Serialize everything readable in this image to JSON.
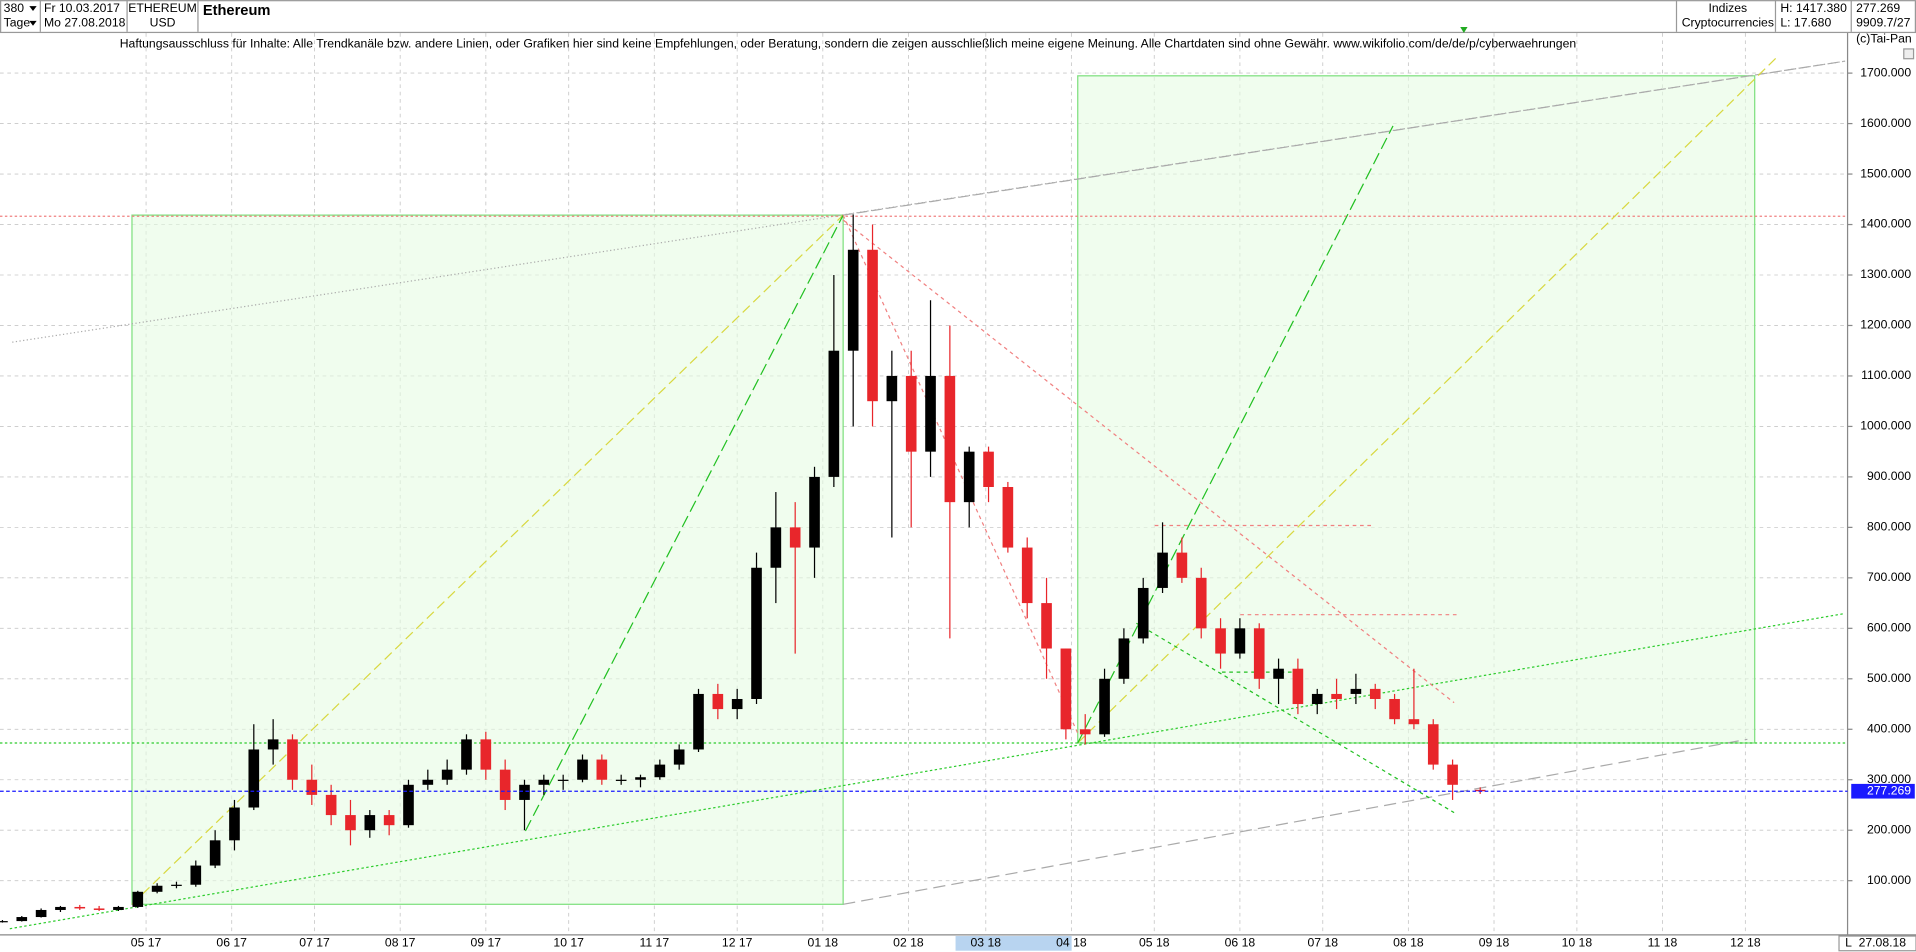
{
  "header": {
    "count": "380",
    "start": "Fr 10.03.2017",
    "period": "Tage",
    "end": "Mo 27.08.2018",
    "symbol": "ETHEREUM",
    "currency": "USD",
    "name": "Ethereum",
    "group": "Indizes",
    "subgroup": "Cryptocurrencies",
    "high": "H: 1417.380",
    "low": "L: 17.680",
    "last": "277.269",
    "extra": "9909.7/27",
    "copyright": "(c)Tai-Pan",
    "end_short": "27.08.18",
    "scale_mode": "L"
  },
  "chart_data": {
    "type": "candlestick",
    "title": "Haftungsausschluss für Inhalte: Alle Trendkanäle bzw. andere Linien, oder Grafiken hier sind keine Empfehlungen, oder Beratung, sondern die zeigen ausschließlich meine eigene Meinung. Alle Chartdaten sind ohne Gewähr.  www.wikifolio.com/de/de/p/cyberwaehrungen",
    "up_color": "#000000",
    "down_color": "#e8262b",
    "grid": true,
    "last_price": 277.269,
    "last_color": "#1a1aff",
    "xlim": [
      0,
      668
    ],
    "ylim": [
      0,
      1760
    ],
    "xticks": [
      {
        "value": 52,
        "label": "05 17"
      },
      {
        "value": 83,
        "label": "06 17"
      },
      {
        "value": 113,
        "label": "07 17"
      },
      {
        "value": 144,
        "label": "08 17"
      },
      {
        "value": 175,
        "label": "09 17"
      },
      {
        "value": 205,
        "label": "10 17"
      },
      {
        "value": 236,
        "label": "11 17"
      },
      {
        "value": 266,
        "label": "12 17"
      },
      {
        "value": 297,
        "label": "01 18"
      },
      {
        "value": 328,
        "label": "02 18"
      },
      {
        "value": 356,
        "label": "03 18"
      },
      {
        "value": 387,
        "label": "04 18"
      },
      {
        "value": 417,
        "label": "05 18"
      },
      {
        "value": 448,
        "label": "06 18"
      },
      {
        "value": 478,
        "label": "07 18"
      },
      {
        "value": 509,
        "label": "08 18"
      },
      {
        "value": 540,
        "label": "09 18"
      },
      {
        "value": 570,
        "label": "10 18"
      },
      {
        "value": 601,
        "label": "11 18"
      },
      {
        "value": 631,
        "label": "12 18"
      }
    ],
    "yticks": [
      {
        "value": 100,
        "label": "100.000"
      },
      {
        "value": 200,
        "label": "200.000"
      },
      {
        "value": 300,
        "label": "300.000"
      },
      {
        "value": 400,
        "label": "400.000"
      },
      {
        "value": 500,
        "label": "500.000"
      },
      {
        "value": 600,
        "label": "600.000"
      },
      {
        "value": 700,
        "label": "700.000"
      },
      {
        "value": 800,
        "label": "800.000"
      },
      {
        "value": 900,
        "label": "900.000"
      },
      {
        "value": 1000,
        "label": "1000.000"
      },
      {
        "value": 1100,
        "label": "1100.000"
      },
      {
        "value": 1200,
        "label": "1200.000"
      },
      {
        "value": 1300,
        "label": "1300.000"
      },
      {
        "value": 1400,
        "label": "1400.000"
      },
      {
        "value": 1500,
        "label": "1500.000"
      },
      {
        "value": 1600,
        "label": "1600.000"
      },
      {
        "value": 1700,
        "label": "1700.000"
      }
    ],
    "x": [
      0,
      7,
      14,
      21,
      28,
      35,
      42,
      49,
      56,
      63,
      70,
      77,
      84,
      91,
      98,
      105,
      112,
      119,
      126,
      133,
      140,
      147,
      154,
      161,
      168,
      175,
      182,
      189,
      196,
      203,
      210,
      217,
      224,
      231,
      238,
      245,
      252,
      259,
      266,
      273,
      280,
      287,
      294,
      301,
      308,
      315,
      322,
      329,
      336,
      343,
      350,
      357,
      364,
      371,
      378,
      385,
      392,
      399,
      406,
      413,
      420,
      427,
      434,
      441,
      448,
      455,
      462,
      469,
      476,
      483,
      490,
      497,
      504,
      511,
      518,
      525,
      535
    ],
    "open": [
      19,
      20,
      28,
      42,
      48,
      45,
      42,
      48,
      78,
      90,
      92,
      130,
      180,
      245,
      360,
      380,
      300,
      270,
      230,
      200,
      230,
      210,
      290,
      300,
      320,
      380,
      320,
      260,
      290,
      300,
      300,
      340,
      300,
      300,
      305,
      330,
      360,
      470,
      440,
      460,
      720,
      800,
      760,
      900,
      1150,
      1350,
      1050,
      1100,
      950,
      1100,
      850,
      950,
      880,
      760,
      650,
      560,
      400,
      390,
      500,
      580,
      680,
      750,
      700,
      600,
      550,
      600,
      500,
      520,
      450,
      470,
      470,
      480,
      460,
      420,
      410,
      330,
      280
    ],
    "high": [
      22,
      30,
      45,
      50,
      52,
      50,
      50,
      80,
      95,
      98,
      140,
      200,
      260,
      410,
      420,
      390,
      330,
      290,
      260,
      240,
      240,
      300,
      320,
      340,
      390,
      395,
      340,
      300,
      310,
      310,
      350,
      350,
      310,
      310,
      340,
      370,
      480,
      490,
      480,
      750,
      870,
      850,
      920,
      1300,
      1420,
      1400,
      1150,
      1150,
      1250,
      1200,
      960,
      960,
      890,
      780,
      700,
      560,
      430,
      520,
      600,
      700,
      810,
      780,
      720,
      620,
      620,
      610,
      540,
      540,
      480,
      500,
      510,
      490,
      470,
      520,
      420,
      340,
      285
    ],
    "low": [
      17,
      19,
      27,
      38,
      42,
      40,
      40,
      46,
      75,
      85,
      88,
      125,
      160,
      240,
      330,
      280,
      250,
      210,
      170,
      185,
      190,
      205,
      280,
      290,
      310,
      300,
      240,
      200,
      270,
      280,
      295,
      290,
      290,
      285,
      300,
      320,
      355,
      420,
      420,
      450,
      650,
      550,
      700,
      880,
      1000,
      1000,
      780,
      800,
      900,
      580,
      800,
      850,
      750,
      620,
      500,
      380,
      370,
      385,
      490,
      570,
      670,
      690,
      580,
      520,
      540,
      480,
      450,
      430,
      430,
      440,
      450,
      440,
      410,
      400,
      320,
      260,
      272
    ],
    "close": [
      20,
      28,
      42,
      48,
      45,
      42,
      48,
      78,
      90,
      92,
      130,
      180,
      245,
      360,
      380,
      300,
      270,
      230,
      200,
      230,
      210,
      290,
      300,
      320,
      380,
      320,
      260,
      290,
      300,
      300,
      340,
      300,
      300,
      305,
      330,
      360,
      470,
      440,
      460,
      720,
      800,
      760,
      900,
      1150,
      1350,
      1050,
      1100,
      950,
      1100,
      850,
      950,
      880,
      760,
      650,
      560,
      400,
      390,
      500,
      580,
      680,
      750,
      700,
      600,
      550,
      600,
      500,
      520,
      450,
      470,
      460,
      480,
      460,
      420,
      410,
      330,
      290,
      277.269
    ]
  }
}
